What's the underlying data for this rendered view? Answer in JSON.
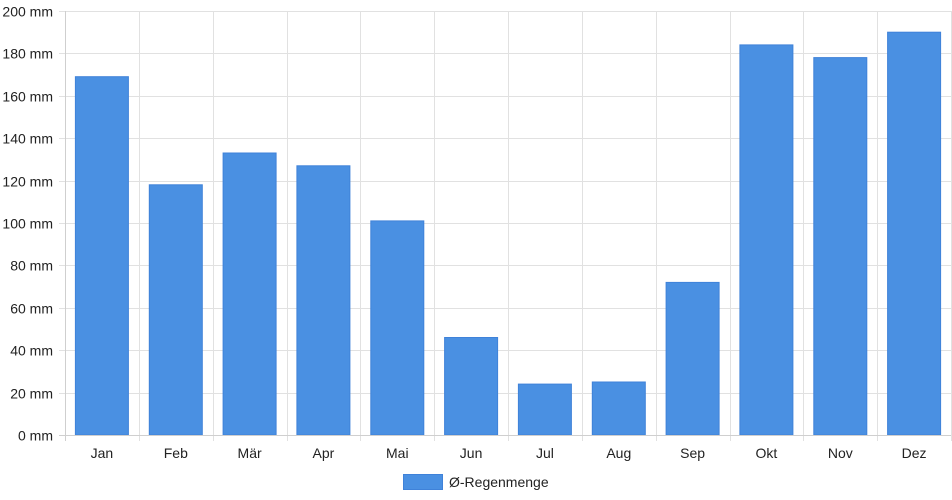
{
  "chart_data": {
    "type": "bar",
    "categories": [
      "Jan",
      "Feb",
      "Mär",
      "Apr",
      "Mai",
      "Jun",
      "Jul",
      "Aug",
      "Sep",
      "Okt",
      "Nov",
      "Dez"
    ],
    "series": [
      {
        "name": "Ø-Regenmenge",
        "values": [
          169,
          118,
          133,
          127,
          101,
          46,
          24,
          25,
          72,
          184,
          178,
          190
        ],
        "color": "#4a90e2"
      }
    ],
    "ylim": [
      0,
      200
    ],
    "yticks": [
      0,
      20,
      40,
      60,
      80,
      100,
      120,
      140,
      160,
      180,
      200
    ],
    "y_unit": "mm",
    "grid": true,
    "legend_position": "bottom-center"
  }
}
